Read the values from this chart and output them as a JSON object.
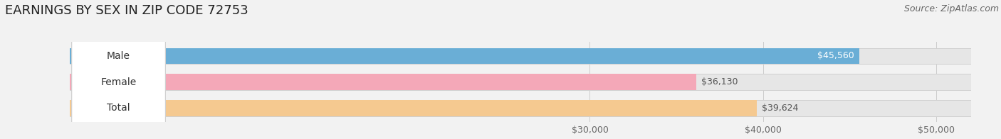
{
  "title": "EARNINGS BY SEX IN ZIP CODE 72753",
  "source": "Source: ZipAtlas.com",
  "categories": [
    "Male",
    "Female",
    "Total"
  ],
  "values": [
    45560,
    36130,
    39624
  ],
  "bar_colors": [
    "#6aaed6",
    "#f4a8b8",
    "#f5c990"
  ],
  "label_inside": [
    true,
    false,
    false
  ],
  "x_min": 0,
  "x_max": 52000,
  "x_ticks": [
    30000,
    40000,
    50000
  ],
  "x_tick_labels": [
    "$30,000",
    "$40,000",
    "$50,000"
  ],
  "background_color": "#f2f2f2",
  "bar_bg_color": "#e6e6e6",
  "title_fontsize": 13,
  "source_fontsize": 9,
  "tick_fontsize": 9,
  "cat_fontsize": 10,
  "val_fontsize": 9
}
